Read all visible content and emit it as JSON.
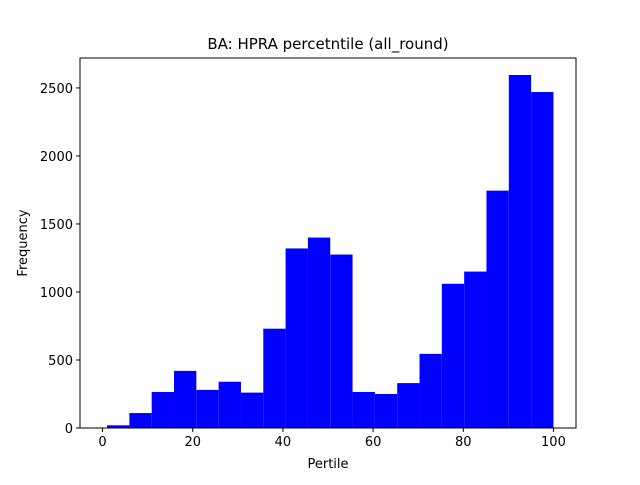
{
  "chart_data": {
    "type": "bar",
    "title": "BA: HPRA percetntile (all_round)",
    "xlabel": "Pertile",
    "ylabel": "Frequency",
    "xlim": [
      -5,
      105
    ],
    "ylim": [
      0,
      2720
    ],
    "xticks": [
      0,
      20,
      40,
      60,
      80,
      100
    ],
    "yticks": [
      0,
      500,
      1000,
      1500,
      2000,
      2500
    ],
    "bar_color": "#0000ff",
    "grid": false,
    "bins": [
      {
        "start": 1,
        "end": 5.95,
        "value": 20
      },
      {
        "start": 5.95,
        "end": 10.9,
        "value": 110
      },
      {
        "start": 10.9,
        "end": 15.85,
        "value": 265
      },
      {
        "start": 15.85,
        "end": 20.8,
        "value": 420
      },
      {
        "start": 20.8,
        "end": 25.75,
        "value": 280
      },
      {
        "start": 25.75,
        "end": 30.7,
        "value": 340
      },
      {
        "start": 30.7,
        "end": 35.65,
        "value": 260
      },
      {
        "start": 35.65,
        "end": 40.6,
        "value": 730
      },
      {
        "start": 40.6,
        "end": 45.55,
        "value": 1320
      },
      {
        "start": 45.55,
        "end": 50.5,
        "value": 1400
      },
      {
        "start": 50.5,
        "end": 55.45,
        "value": 1275
      },
      {
        "start": 55.45,
        "end": 60.4,
        "value": 265
      },
      {
        "start": 60.4,
        "end": 65.35,
        "value": 250
      },
      {
        "start": 65.35,
        "end": 70.3,
        "value": 330
      },
      {
        "start": 70.3,
        "end": 75.25,
        "value": 545
      },
      {
        "start": 75.25,
        "end": 80.2,
        "value": 1060
      },
      {
        "start": 80.2,
        "end": 85.15,
        "value": 1150
      },
      {
        "start": 85.15,
        "end": 90.1,
        "value": 1745
      },
      {
        "start": 90.1,
        "end": 95.05,
        "value": 2595
      },
      {
        "start": 95.05,
        "end": 100,
        "value": 2470
      }
    ]
  }
}
